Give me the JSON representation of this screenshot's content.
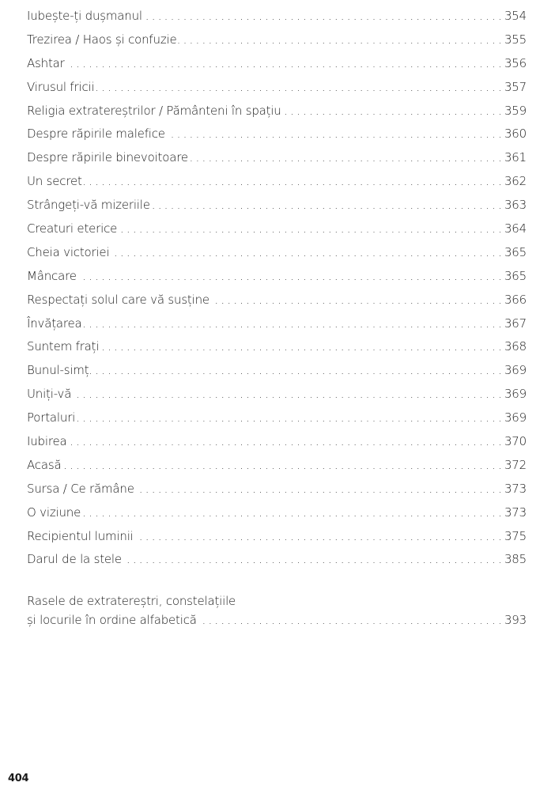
{
  "entries": [
    {
      "title": "Iubește-ți dușmanul",
      "page": "354"
    },
    {
      "title": "Trezirea / Haos și confuzie",
      "page": "355"
    },
    {
      "title": "Ashtar",
      "page": "356"
    },
    {
      "title": "Virusul fricii",
      "page": "357"
    },
    {
      "title": "Religia extratereștrilor / Pământeni în spațiu",
      "page": "359"
    },
    {
      "title": "Despre răpirile malefice",
      "page": "360"
    },
    {
      "title": "Despre răpirile binevoitoare",
      "page": "361"
    },
    {
      "title": "Un secret",
      "page": "362"
    },
    {
      "title": "Strângeți-vă mizeriile",
      "page": "363"
    },
    {
      "title": "Creaturi eterice",
      "page": "364"
    },
    {
      "title": "Cheia victoriei",
      "page": "365"
    },
    {
      "title": "Mâncare",
      "page": "365"
    },
    {
      "title": "Respectați solul care vă susține",
      "page": "366"
    },
    {
      "title": "Învățarea",
      "page": "367"
    },
    {
      "title": "Suntem frați",
      "page": "368"
    },
    {
      "title": "Bunul-simț",
      "page": "369"
    },
    {
      "title": "Uniți-vă",
      "page": "369"
    },
    {
      "title": "Portaluri",
      "page": "369"
    },
    {
      "title": "Iubirea",
      "page": "370"
    },
    {
      "title": "Acasă",
      "page": "372"
    },
    {
      "title": "Sursa / Ce rămâne",
      "page": "373"
    },
    {
      "title": "O viziune",
      "page": "373"
    },
    {
      "title": "Recipientul luminii",
      "page": "375"
    },
    {
      "title": "Darul de la stele",
      "page": "385"
    }
  ],
  "appendix": {
    "line1": "Rasele de extratereștri, constelațiile",
    "line2": "și locurile în ordine alfabetică",
    "page": "393"
  },
  "page_number": "404"
}
